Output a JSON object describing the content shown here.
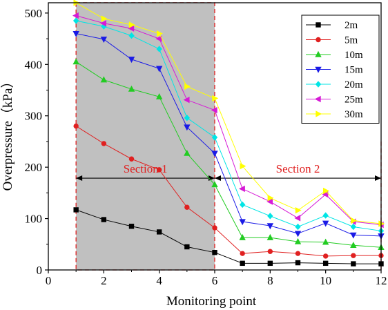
{
  "chart_data": {
    "type": "line",
    "xlabel": "Monitoring point",
    "ylabel": "Overpressure（kPa）",
    "xlim": [
      0,
      12
    ],
    "ylim": [
      0,
      520
    ],
    "xticks": [
      "0",
      "2",
      "4",
      "6",
      "8",
      "10",
      "12"
    ],
    "yticks": [
      "0",
      "100",
      "200",
      "300",
      "400",
      "500"
    ],
    "x": [
      1,
      2,
      3,
      4,
      5,
      6,
      7,
      8,
      9,
      10,
      11,
      12
    ],
    "legend_position": "top-right",
    "series": [
      {
        "name": "2m",
        "color": "#000000",
        "marker": "square",
        "values": [
          117,
          98,
          85,
          74,
          45,
          34,
          13,
          13,
          14,
          13,
          12,
          12
        ]
      },
      {
        "name": "5m",
        "color": "#e02020",
        "marker": "circle",
        "values": [
          280,
          246,
          216,
          195,
          122,
          82,
          32,
          36,
          32,
          27,
          28,
          28
        ]
      },
      {
        "name": "10m",
        "color": "#22cc22",
        "marker": "triangle-up",
        "values": [
          405,
          370,
          352,
          337,
          227,
          166,
          63,
          63,
          55,
          54,
          48,
          44
        ]
      },
      {
        "name": "15m",
        "color": "#1a1ae6",
        "marker": "triangle-down",
        "values": [
          460,
          449,
          410,
          392,
          278,
          227,
          94,
          86,
          71,
          91,
          68,
          66
        ]
      },
      {
        "name": "20m",
        "color": "#00e5e5",
        "marker": "diamond",
        "values": [
          485,
          474,
          456,
          430,
          296,
          258,
          127,
          105,
          84,
          106,
          84,
          76
        ]
      },
      {
        "name": "25m",
        "color": "#d61ad6",
        "marker": "triangle-left",
        "values": [
          495,
          480,
          470,
          450,
          331,
          311,
          158,
          133,
          101,
          147,
          94,
          88
        ]
      },
      {
        "name": "30m",
        "color": "#ffff00",
        "marker": "triangle-right",
        "values": [
          520,
          489,
          477,
          460,
          357,
          334,
          202,
          140,
          116,
          154,
          96,
          90
        ]
      }
    ],
    "annotations": [
      {
        "label": "Section 1",
        "x_start": 1,
        "x_end": 6,
        "y": 180
      },
      {
        "label": "Section 2",
        "x_start": 6,
        "x_end": 12,
        "y": 180
      }
    ],
    "shaded_region": {
      "x_start": 1,
      "x_end": 6,
      "color": "#c0c0c0"
    },
    "grid": false
  }
}
